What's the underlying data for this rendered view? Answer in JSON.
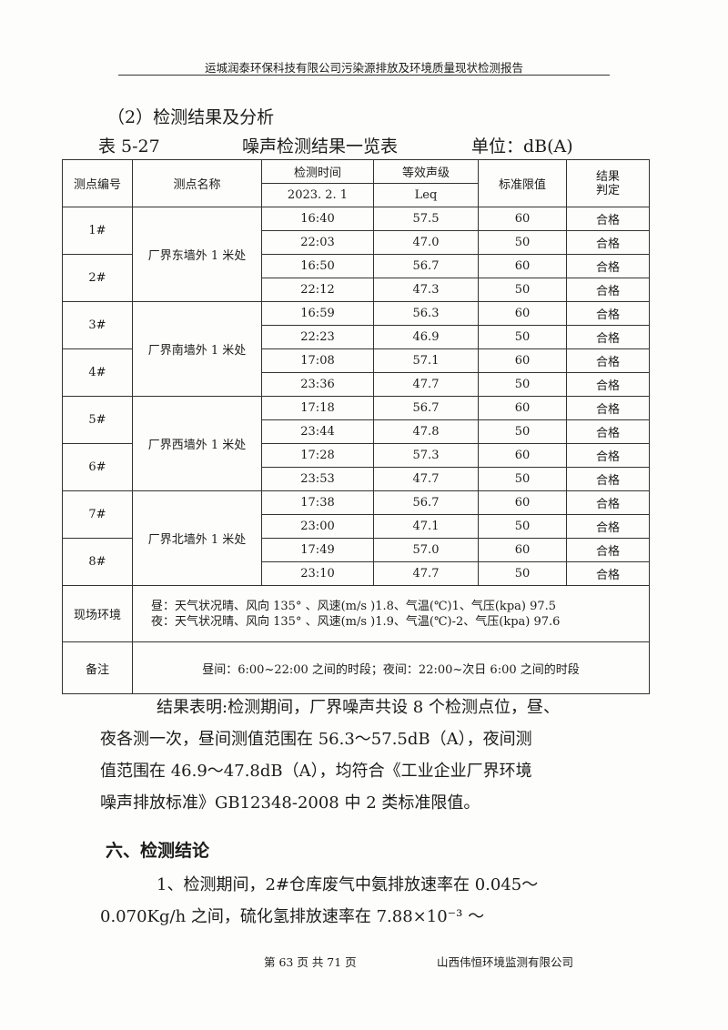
{
  "header": {
    "title": "运城润泰环保科技有限公司污染源排放及环境质量现状检测报告"
  },
  "section_heading": "（2）检测结果及分析",
  "caption": {
    "table_no": "表 5-27",
    "title": "噪声检测结果一览表",
    "unit": "单位：dB(A)"
  },
  "table": {
    "headers": {
      "point_no": "测点编号",
      "point_name": "测点名称",
      "time": "检测时间",
      "date": "2023. 2. 1",
      "level": "等效声级",
      "leq": "Leq",
      "limit": "标准限值",
      "result": "结果判定"
    },
    "groups": [
      {
        "name": "厂界东墙外 1 米处",
        "points": [
          {
            "no": "1#",
            "rows": [
              [
                "16:40",
                "57.5",
                "60",
                "合格"
              ],
              [
                "22:03",
                "47.0",
                "50",
                "合格"
              ]
            ]
          },
          {
            "no": "2#",
            "rows": [
              [
                "16:50",
                "56.7",
                "60",
                "合格"
              ],
              [
                "22:12",
                "47.3",
                "50",
                "合格"
              ]
            ]
          }
        ]
      },
      {
        "name": "厂界南墙外 1 米处",
        "points": [
          {
            "no": "3#",
            "rows": [
              [
                "16:59",
                "56.3",
                "60",
                "合格"
              ],
              [
                "22:23",
                "46.9",
                "50",
                "合格"
              ]
            ]
          },
          {
            "no": "4#",
            "rows": [
              [
                "17:08",
                "57.1",
                "60",
                "合格"
              ],
              [
                "23:36",
                "47.7",
                "50",
                "合格"
              ]
            ]
          }
        ]
      },
      {
        "name": "厂界西墙外 1 米处",
        "points": [
          {
            "no": "5#",
            "rows": [
              [
                "17:18",
                "56.7",
                "60",
                "合格"
              ],
              [
                "23:44",
                "47.8",
                "50",
                "合格"
              ]
            ]
          },
          {
            "no": "6#",
            "rows": [
              [
                "17:28",
                "57.3",
                "60",
                "合格"
              ],
              [
                "23:53",
                "47.7",
                "50",
                "合格"
              ]
            ]
          }
        ]
      },
      {
        "name": "厂界北墙外 1 米处",
        "points": [
          {
            "no": "7#",
            "rows": [
              [
                "17:38",
                "56.7",
                "60",
                "合格"
              ],
              [
                "23:00",
                "47.1",
                "50",
                "合格"
              ]
            ]
          },
          {
            "no": "8#",
            "rows": [
              [
                "17:49",
                "57.0",
                "60",
                "合格"
              ],
              [
                "23:10",
                "47.7",
                "50",
                "合格"
              ]
            ]
          }
        ]
      }
    ],
    "env_label": "现场环境",
    "env_day": "昼：天气状况晴、风向 135°  、风速(m/s )1.8、气温(℃)1、气压(kpa) 97.5",
    "env_night": "夜：天气状况晴、风向 135°  、风速(m/s )1.9、气温(℃)-2、气压(kpa) 97.6",
    "note_label": "备注",
    "note": "昼间：6:00~22:00 之间的时段；夜间：22:00~次日 6:00 之间的时段"
  },
  "conclusion_para": [
    "结果表明:检测期间，厂界噪声共设 8 个检测点位，昼、",
    "夜各测一次，昼间测值范围在 56.3～57.5dB（A），夜间测",
    "值范围在 46.9～47.8dB（A），均符合《工业企业厂界环境",
    "噪声排放标准》GB12348-2008 中 2 类标准限值。"
  ],
  "section6": "六、检测结论",
  "section6_para": [
    "1、检测期间，2#仓库废气中氨排放速率在 0.045～",
    "0.070Kg/h 之间，硫化氢排放速率在 7.88×10⁻³ ～"
  ],
  "footer": {
    "page": "第 63 页 共 71 页",
    "company": "山西伟恒环境监测有限公司"
  }
}
